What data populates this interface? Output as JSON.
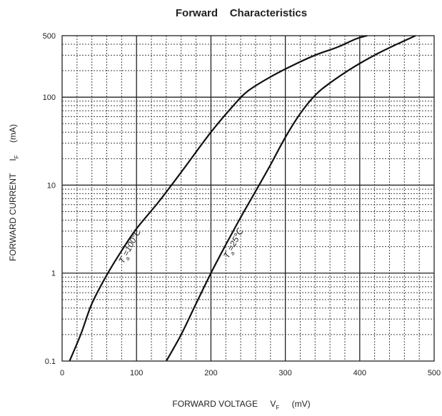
{
  "chart_data": {
    "type": "line",
    "title": "Forward    Characteristics",
    "xlabel": {
      "main": "FORWARD VOLTAGE",
      "symbol": "V",
      "subscript": "F",
      "unit": "(mV)"
    },
    "ylabel": {
      "main": "FORWARD CURRENT",
      "symbol": "I",
      "subscript": "F",
      "unit": "(mA)"
    },
    "xlim": [
      0,
      500
    ],
    "ylim": [
      0.1,
      500
    ],
    "yscale": "log",
    "grid": "major solid, minor dotted",
    "x_ticks": [
      "0",
      "100",
      "200",
      "300",
      "400",
      "500"
    ],
    "y_ticks": [
      "0.1",
      "1",
      "10",
      "100",
      "500"
    ],
    "series": [
      {
        "name": "Ta=100℃",
        "label_parts": {
          "main": "T",
          "sub": "a",
          "rest": "=100℃"
        },
        "points": [
          [
            10,
            0.1
          ],
          [
            25,
            0.2
          ],
          [
            40,
            0.45
          ],
          [
            60,
            0.95
          ],
          [
            80,
            1.8
          ],
          [
            100,
            3.2
          ],
          [
            130,
            6.5
          ],
          [
            160,
            14
          ],
          [
            200,
            40
          ],
          [
            230,
            80
          ],
          [
            250,
            118
          ],
          [
            280,
            170
          ],
          [
            310,
            230
          ],
          [
            340,
            300
          ],
          [
            370,
            370
          ],
          [
            395,
            460
          ],
          [
            410,
            500
          ]
        ]
      },
      {
        "name": "Ta=25℃",
        "label_parts": {
          "main": "T",
          "sub": "a",
          "rest": "=25℃"
        },
        "points": [
          [
            140,
            0.1
          ],
          [
            160,
            0.2
          ],
          [
            180,
            0.45
          ],
          [
            200,
            1.0
          ],
          [
            220,
            2.1
          ],
          [
            240,
            4.3
          ],
          [
            260,
            8.5
          ],
          [
            280,
            17
          ],
          [
            300,
            35
          ],
          [
            320,
            65
          ],
          [
            340,
            105
          ],
          [
            360,
            145
          ],
          [
            390,
            215
          ],
          [
            420,
            300
          ],
          [
            450,
            400
          ],
          [
            475,
            500
          ]
        ]
      }
    ]
  }
}
